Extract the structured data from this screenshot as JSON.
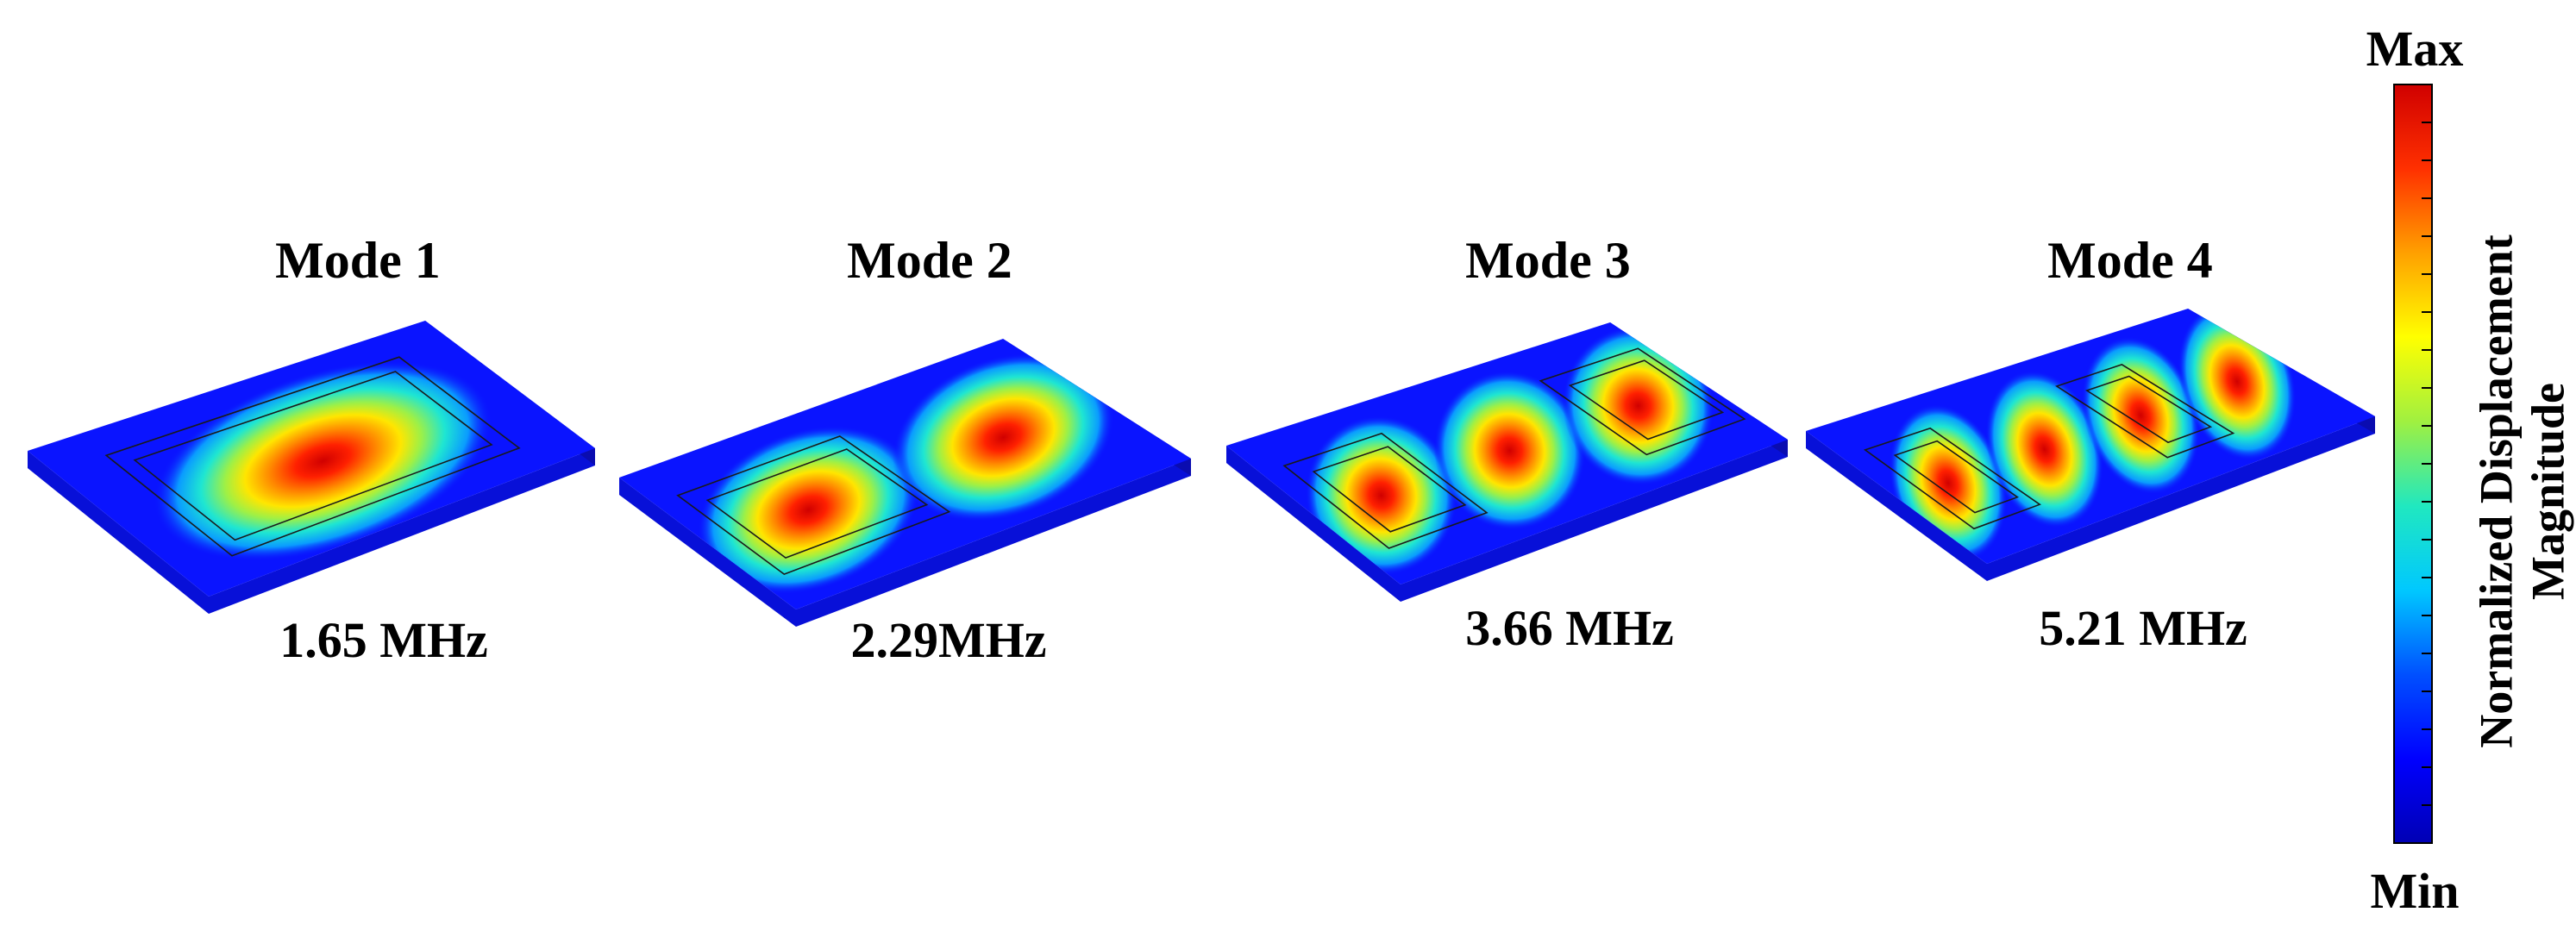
{
  "modes": [
    {
      "title": "Mode 1",
      "frequency": "1.65 MHz",
      "antinodes": 1
    },
    {
      "title": "Mode 2",
      "frequency": "2.29MHz",
      "antinodes": 2
    },
    {
      "title": "Mode 3",
      "frequency": "3.66 MHz",
      "antinodes": 3
    },
    {
      "title": "Mode 4",
      "frequency": "5.21 MHz",
      "antinodes": 4
    }
  ],
  "colorbar": {
    "max_label": "Max",
    "min_label": "Min",
    "title_line1": "Normalized Displacement",
    "title_line2": "Magnitude",
    "colormap": [
      "#0000b4",
      "#0000ff",
      "#0050ff",
      "#00c8ff",
      "#20e8c0",
      "#a0f040",
      "#ffff00",
      "#ffa000",
      "#ff3000",
      "#d00000"
    ]
  },
  "colors": {
    "plate_base": "#0a14ff",
    "plate_side_front": "#0810d8",
    "plate_side_right": "#0a0cb0",
    "electrode_line": "#1a1a1a"
  }
}
